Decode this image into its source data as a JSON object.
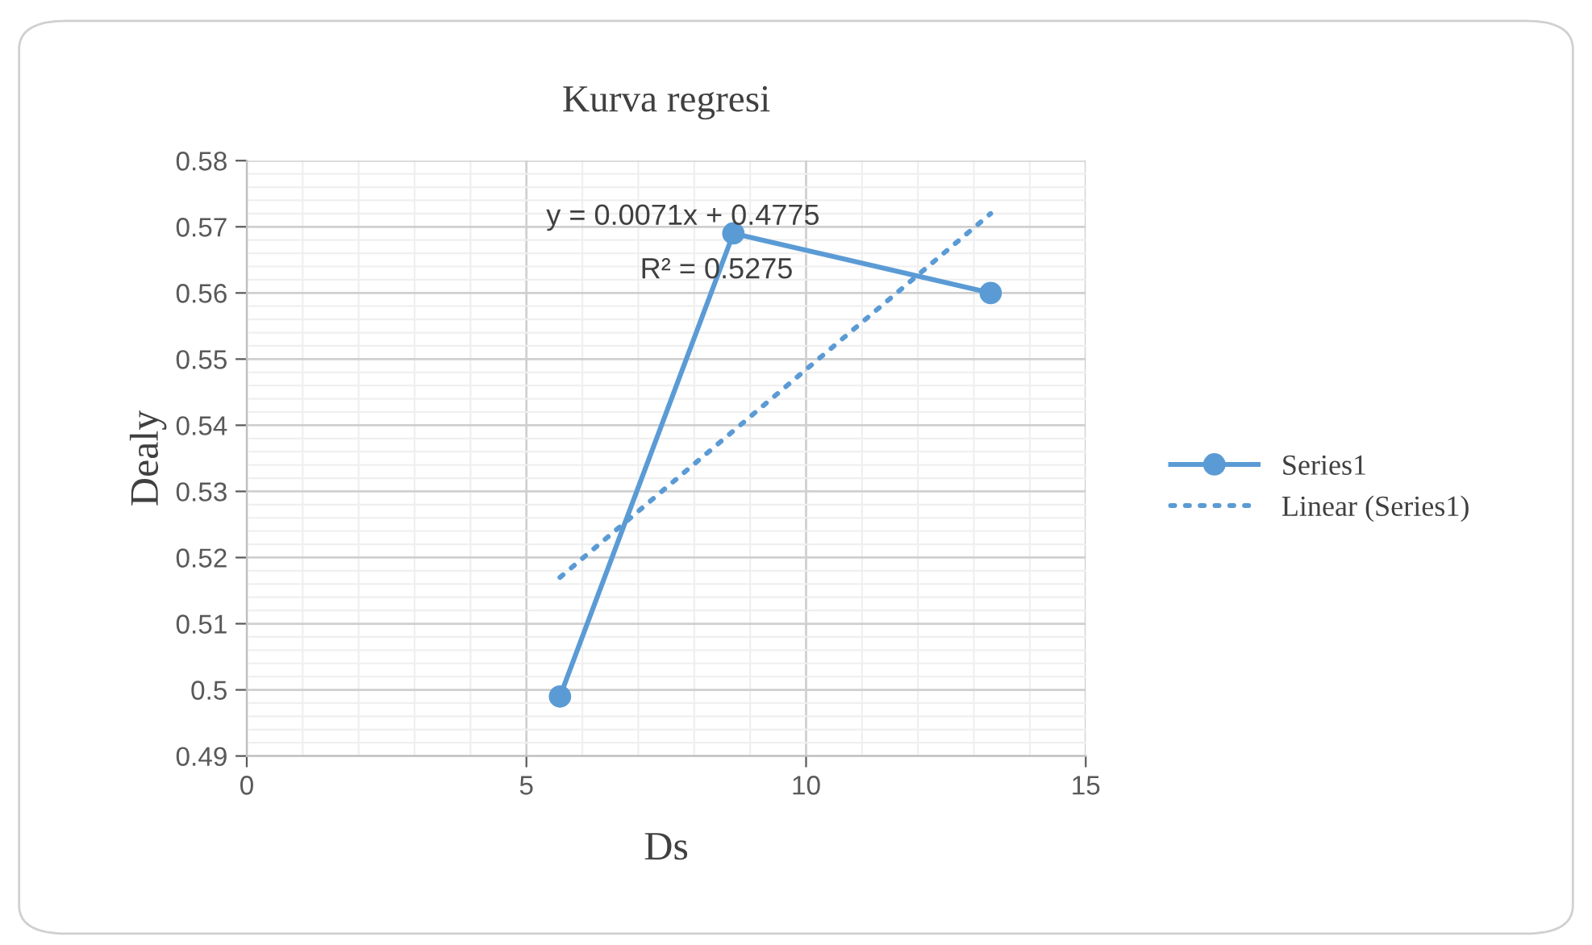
{
  "chart_data": {
    "type": "line",
    "title": "Kurva regresi",
    "xlabel": "Ds",
    "ylabel": "Dealy",
    "series": [
      {
        "name": "Series1",
        "color": "#5b9bd5",
        "x": [
          5.6,
          8.7,
          13.3
        ],
        "values": [
          0.499,
          0.569,
          0.56
        ],
        "marker": "circle",
        "line_style": "solid"
      },
      {
        "name": "Linear (Series1)",
        "color": "#5b9bd5",
        "x": [
          5.6,
          13.3
        ],
        "values": [
          0.517,
          0.572
        ],
        "marker": "none",
        "line_style": "dotted"
      }
    ],
    "annotations": [
      "y = 0.0071x + 0.4775",
      "R² = 0.5275"
    ],
    "xlim": [
      0,
      15
    ],
    "xticks": [
      0,
      5,
      10,
      15
    ],
    "ylim": [
      0.49,
      0.58
    ],
    "yticks": [
      0.49,
      0.5,
      0.51,
      0.52,
      0.53,
      0.54,
      0.55,
      0.56,
      0.57,
      0.58
    ],
    "grid": true,
    "legend": "right"
  }
}
